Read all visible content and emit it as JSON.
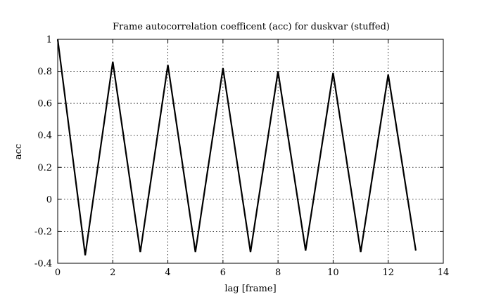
{
  "chart_data": {
    "type": "line",
    "title": "Frame autocorrelation coefficent (acc) for duskvar (stuffed)",
    "xlabel": "lag [frame]",
    "ylabel": "acc",
    "xlim": [
      0,
      14
    ],
    "ylim": [
      -0.4,
      1
    ],
    "xticks": [
      0,
      2,
      4,
      6,
      8,
      10,
      12,
      14
    ],
    "yticks": [
      -0.4,
      -0.2,
      0,
      0.2,
      0.4,
      0.6,
      0.8,
      1
    ],
    "xtick_labels": [
      "0",
      "2",
      "4",
      "6",
      "8",
      "10",
      "12",
      "14"
    ],
    "ytick_labels": [
      "-0.4",
      "-0.2",
      "0",
      "0.2",
      "0.4",
      "0.6",
      "0.8",
      "1"
    ],
    "grid": true,
    "legend": "none",
    "series": [
      {
        "x": [
          0,
          1,
          2,
          3,
          4,
          5,
          6,
          7,
          8,
          9,
          10,
          11,
          12,
          13
        ],
        "y": [
          1.0,
          -0.35,
          0.86,
          -0.33,
          0.84,
          -0.33,
          0.82,
          -0.33,
          0.8,
          -0.32,
          0.79,
          -0.33,
          0.78,
          -0.32
        ],
        "color": "#000000"
      }
    ]
  }
}
